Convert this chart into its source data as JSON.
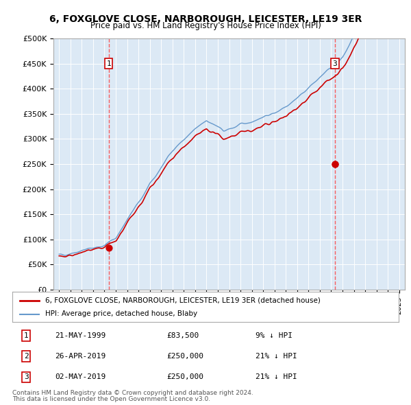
{
  "title": "6, FOXGLOVE CLOSE, NARBOROUGH, LEICESTER, LE19 3ER",
  "subtitle": "Price paid vs. HM Land Registry's House Price Index (HPI)",
  "ylabel": "",
  "ylim": [
    0,
    500000
  ],
  "yticks": [
    0,
    50000,
    100000,
    150000,
    200000,
    250000,
    300000,
    350000,
    400000,
    450000,
    500000
  ],
  "ytick_labels": [
    "£0",
    "£50K",
    "£100K",
    "£150K",
    "£200K",
    "£250K",
    "£300K",
    "£350K",
    "£400K",
    "£450K",
    "£500K"
  ],
  "bg_color": "#dce9f5",
  "plot_bg": "#dce9f5",
  "red_line_color": "#cc0000",
  "blue_line_color": "#6699cc",
  "dashed_color": "#ff4444",
  "marker_color": "#cc0000",
  "transaction_1": {
    "date_num": 1999.38,
    "price": 83500,
    "label": "1"
  },
  "transaction_2": {
    "date_num": 2019.32,
    "price": 250000,
    "label": "2"
  },
  "transaction_3": {
    "date_num": 2019.34,
    "price": 250000,
    "label": "3"
  },
  "legend_label_red": "6, FOXGLOVE CLOSE, NARBOROUGH, LEICESTER, LE19 3ER (detached house)",
  "legend_label_blue": "HPI: Average price, detached house, Blaby",
  "footer_line1": "Contains HM Land Registry data © Crown copyright and database right 2024.",
  "footer_line2": "This data is licensed under the Open Government Licence v3.0.",
  "table_entries": [
    {
      "num": "1",
      "date": "21-MAY-1999",
      "price": "£83,500",
      "note": "9% ↓ HPI"
    },
    {
      "num": "2",
      "date": "26-APR-2019",
      "price": "£250,000",
      "note": "21% ↓ HPI"
    },
    {
      "num": "3",
      "date": "02-MAY-2019",
      "price": "£250,000",
      "note": "21% ↓ HPI"
    }
  ]
}
